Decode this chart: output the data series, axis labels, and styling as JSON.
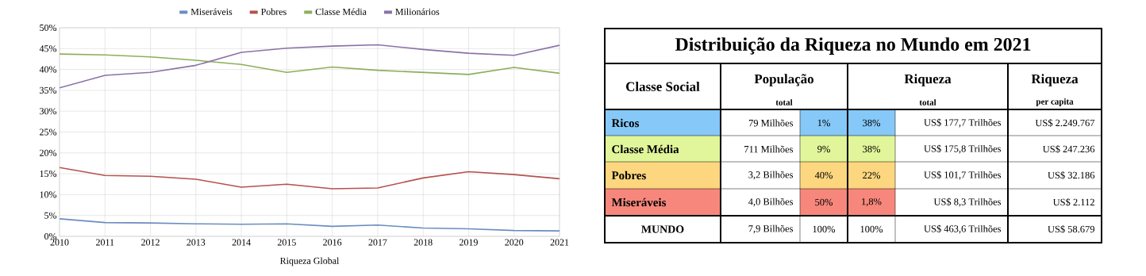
{
  "chart_data": [
    {
      "type": "line",
      "xlabel": "Riqueza Global",
      "x": [
        2010,
        2011,
        2012,
        2013,
        2014,
        2015,
        2016,
        2017,
        2018,
        2019,
        2020,
        2021
      ],
      "series": [
        {
          "name": "Miseráveis",
          "color": "#6b8cc0",
          "values": [
            4.2,
            3.3,
            3.2,
            3.0,
            2.9,
            3.0,
            2.4,
            2.7,
            2.0,
            1.8,
            1.4,
            1.3
          ]
        },
        {
          "name": "Pobres",
          "color": "#b5514f",
          "values": [
            16.5,
            14.6,
            14.4,
            13.7,
            11.8,
            12.5,
            11.4,
            11.6,
            14.0,
            15.5,
            14.8,
            13.8
          ]
        },
        {
          "name": "Classe Média",
          "color": "#8caf5a",
          "values": [
            43.7,
            43.5,
            43.0,
            42.2,
            41.2,
            39.3,
            40.6,
            39.8,
            39.3,
            38.8,
            40.5,
            39.1
          ]
        },
        {
          "name": "Milionários",
          "color": "#8b72a6",
          "values": [
            35.6,
            38.6,
            39.3,
            41.0,
            44.1,
            45.1,
            45.6,
            45.9,
            44.8,
            43.9,
            43.4,
            45.8
          ]
        }
      ],
      "xlim": [
        2010,
        2021
      ],
      "xticks": [
        2010,
        2011,
        2012,
        2013,
        2014,
        2015,
        2016,
        2017,
        2018,
        2019,
        2020,
        2021
      ],
      "ylim": [
        0,
        50
      ],
      "yticks": [
        {
          "value": 0,
          "label": "0%"
        },
        {
          "value": 5,
          "label": "5%"
        },
        {
          "value": 10,
          "label": "10%"
        },
        {
          "value": 15,
          "label": "15%"
        },
        {
          "value": 20,
          "label": "20%"
        },
        {
          "value": 25,
          "label": "25%"
        },
        {
          "value": 30,
          "label": "30%"
        },
        {
          "value": 35,
          "label": "35%"
        },
        {
          "value": 40,
          "label": "40%"
        },
        {
          "value": 45,
          "label": "45%"
        },
        {
          "value": 50,
          "label": "50%"
        }
      ],
      "grid": true,
      "legend": "top"
    },
    {
      "type": "other",
      "title": "Distribuição da Riqueza no Mundo em 2021",
      "annotations": [
        "Classe Social",
        "População",
        "total",
        "Riqueza",
        "total",
        "Riqueza",
        "per capita",
        "Ricos",
        "79  Milhões",
        "1%",
        "38%",
        "US$ 177,7  Trilhões",
        "US$ 2.249.767",
        "Classe Média",
        "711  Milhões",
        "9%",
        "38%",
        "US$ 175,8  Trilhões",
        "US$     247.236",
        "Pobres",
        "3,2  Bilhões",
        "40%",
        "22%",
        "US$ 101,7  Trilhões",
        "US$       32.186",
        "Miseráveis",
        "4,0  Bilhões",
        "50%",
        "1,8%",
        "US$     8,3  Trilhões",
        "US$         2.112",
        "MUNDO",
        "7,9  Bilhões",
        "100%",
        "100%",
        "US$ 463,6  Trilhões",
        "US$       58.679"
      ],
      "colors": [
        "#86c8f8",
        "#e1f59a",
        "#fcd77f",
        "#f7877c",
        "#ffffff"
      ]
    }
  ]
}
